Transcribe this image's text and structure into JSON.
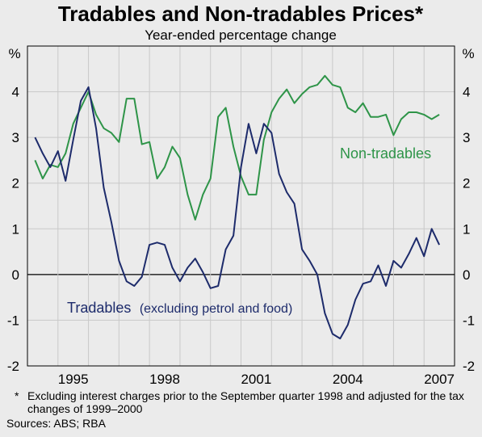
{
  "chart_data": {
    "type": "line",
    "title": "Tradables and Non-tradables Prices*",
    "subtitle": "Year-ended percentage change",
    "y_unit_left": "%",
    "y_unit_right": "%",
    "ylim": [
      -2,
      5
    ],
    "yticks": [
      "-2",
      "-1",
      "0",
      "1",
      "2",
      "3",
      "4"
    ],
    "xlim": [
      1994.0,
      2008.0
    ],
    "xticks": [
      "1995",
      "1998",
      "2001",
      "2004",
      "2007"
    ],
    "grid": {
      "horizontal": true,
      "vertical": true,
      "zero_line": true
    },
    "series": [
      {
        "name": "Non-tradables",
        "color": "#2e9448",
        "x": [
          1994.25,
          1994.5,
          1994.75,
          1995.0,
          1995.25,
          1995.5,
          1995.75,
          1996.0,
          1996.25,
          1996.5,
          1996.75,
          1997.0,
          1997.25,
          1997.5,
          1997.75,
          1998.0,
          1998.25,
          1998.5,
          1998.75,
          1999.0,
          1999.25,
          1999.5,
          1999.75,
          2000.0,
          2000.25,
          2000.5,
          2000.75,
          2001.0,
          2001.25,
          2001.5,
          2001.75,
          2002.0,
          2002.25,
          2002.5,
          2002.75,
          2003.0,
          2003.25,
          2003.5,
          2003.75,
          2004.0,
          2004.25,
          2004.5,
          2004.75,
          2005.0,
          2005.25,
          2005.5,
          2005.75,
          2006.0,
          2006.25,
          2006.5,
          2006.75,
          2007.0,
          2007.25,
          2007.5
        ],
        "values": [
          2.5,
          2.1,
          2.4,
          2.35,
          2.65,
          3.3,
          3.65,
          4.0,
          3.5,
          3.2,
          3.1,
          2.9,
          3.85,
          3.85,
          2.85,
          2.9,
          2.1,
          2.35,
          2.8,
          2.55,
          1.75,
          1.2,
          1.75,
          2.1,
          3.45,
          3.65,
          2.8,
          2.15,
          1.75,
          1.75,
          2.95,
          3.55,
          3.85,
          4.05,
          3.75,
          3.95,
          4.1,
          4.15,
          4.35,
          4.15,
          4.1,
          3.65,
          3.55,
          3.75,
          3.45,
          3.45,
          3.5,
          3.05,
          3.4,
          3.55,
          3.55,
          3.5,
          3.4,
          3.5
        ]
      },
      {
        "name": "Tradables",
        "color": "#1d2b6b",
        "x": [
          1994.25,
          1994.5,
          1994.75,
          1995.0,
          1995.25,
          1995.5,
          1995.75,
          1996.0,
          1996.25,
          1996.5,
          1996.75,
          1997.0,
          1997.25,
          1997.5,
          1997.75,
          1998.0,
          1998.25,
          1998.5,
          1998.75,
          1999.0,
          1999.25,
          1999.5,
          1999.75,
          2000.0,
          2000.25,
          2000.5,
          2000.75,
          2001.0,
          2001.25,
          2001.5,
          2001.75,
          2002.0,
          2002.25,
          2002.5,
          2002.75,
          2003.0,
          2003.25,
          2003.5,
          2003.75,
          2004.0,
          2004.25,
          2004.5,
          2004.75,
          2005.0,
          2005.25,
          2005.5,
          2005.75,
          2006.0,
          2006.25,
          2006.5,
          2006.75,
          2007.0,
          2007.25,
          2007.5
        ],
        "values": [
          3.0,
          2.65,
          2.35,
          2.7,
          2.05,
          2.95,
          3.8,
          4.1,
          3.2,
          1.9,
          1.15,
          0.3,
          -0.15,
          -0.25,
          -0.05,
          0.65,
          0.7,
          0.65,
          0.15,
          -0.15,
          0.15,
          0.35,
          0.05,
          -0.3,
          -0.25,
          0.55,
          0.85,
          2.35,
          3.3,
          2.65,
          3.3,
          3.1,
          2.2,
          1.8,
          1.55,
          0.55,
          0.3,
          0.0,
          -0.85,
          -1.3,
          -1.4,
          -1.1,
          -0.55,
          -0.2,
          -0.15,
          0.2,
          -0.25,
          0.3,
          0.15,
          0.45,
          0.8,
          0.4,
          1.0,
          0.65
        ]
      }
    ],
    "annotations": {
      "nontradables_label": "Non-tradables",
      "tradables_label": "Tradables",
      "tradables_sublabel": "(excluding petrol and food)"
    }
  },
  "footnote": {
    "marker": "*",
    "text": "Excluding interest charges prior to the September quarter 1998 and adjusted for the tax changes of 1999–2000"
  },
  "sources": "Sources: ABS; RBA"
}
